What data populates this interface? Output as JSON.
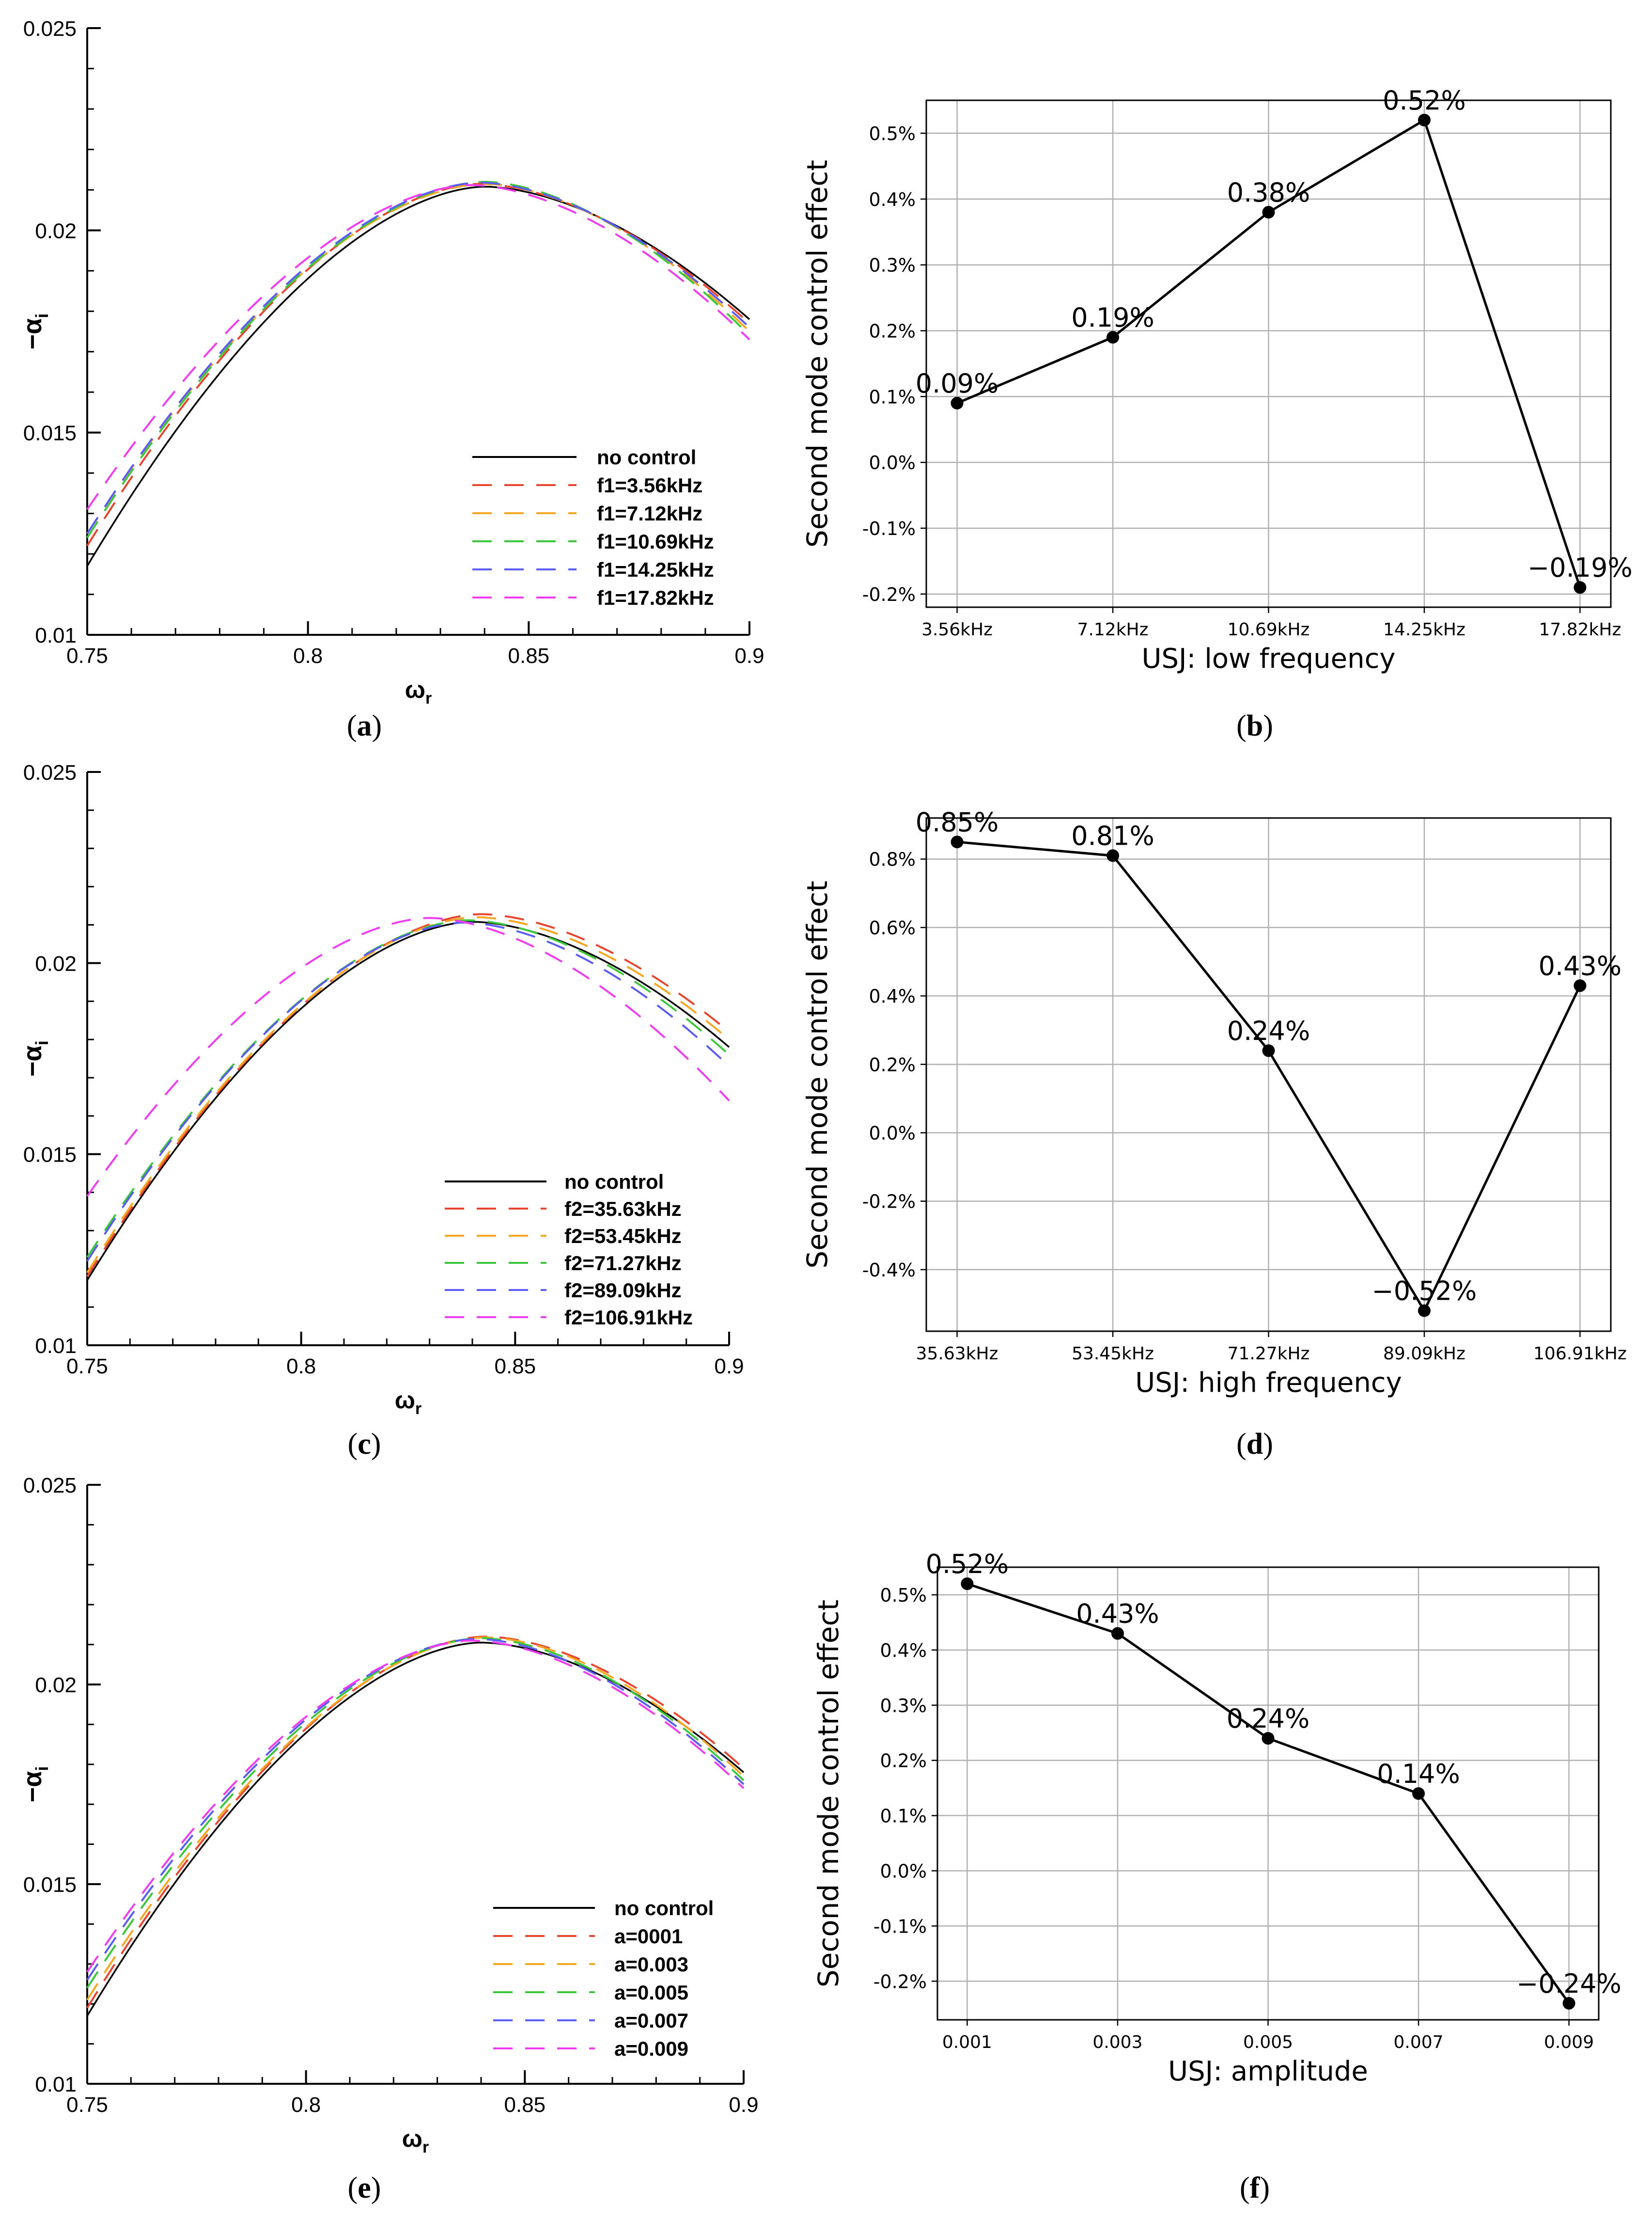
{
  "figure": {
    "panel_labels": [
      {
        "open": "(",
        "letter": "a",
        "close": ")"
      },
      {
        "open": "(",
        "letter": "b",
        "close": ")"
      },
      {
        "open": "(",
        "letter": "c",
        "close": ")"
      },
      {
        "open": "(",
        "letter": "d",
        "close": ")"
      },
      {
        "open": "(",
        "letter": "e",
        "close": ")"
      },
      {
        "open": "(",
        "letter": "f",
        "close": ")"
      }
    ]
  },
  "chart_data": [
    {
      "id": "a",
      "type": "line",
      "xlabel": "ω",
      "xlabel_sub": "r",
      "ylabel": "−α",
      "ylabel_sub": "i",
      "xlim": [
        0.75,
        0.9
      ],
      "ylim": [
        0.01,
        0.025
      ],
      "xticks": [
        0.75,
        0.8,
        0.85,
        0.9
      ],
      "xtick_labels": [
        "0.75",
        "0.8",
        "0.85",
        "0.9"
      ],
      "yticks": [
        0.01,
        0.015,
        0.02,
        0.025
      ],
      "ytick_labels": [
        "0.01",
        "0.015",
        "0.02",
        "0.025"
      ],
      "legend_position": "lower-right",
      "curve_model": {
        "x_peak": [
          0.84,
          0.839,
          0.84,
          0.84,
          0.839,
          0.837
        ],
        "y_peak": [
          0.02108,
          0.02115,
          0.02115,
          0.0212,
          0.02118,
          0.02112
        ],
        "y_start": [
          0.0117,
          0.0122,
          0.0125,
          0.0124,
          0.0125,
          0.0131
        ],
        "y_end": [
          0.0178,
          0.0177,
          0.0175,
          0.0174,
          0.0176,
          0.0173
        ]
      },
      "series": [
        {
          "name": "no control",
          "color": "#000000",
          "dashed": false
        },
        {
          "name": "f1=3.56kHz",
          "color": "#e8452e",
          "dashed": true
        },
        {
          "name": "f1=7.12kHz",
          "color": "#f5a623",
          "dashed": true
        },
        {
          "name": "f1=10.69kHz",
          "color": "#3cc63c",
          "dashed": true
        },
        {
          "name": "f1=14.25kHz",
          "color": "#5b5bf5",
          "dashed": true
        },
        {
          "name": "f1=17.82kHz",
          "color": "#f03cf0",
          "dashed": true
        }
      ]
    },
    {
      "id": "b",
      "type": "line",
      "xlabel": "USJ: low frequency",
      "ylabel": "Second mode control effect",
      "categories": [
        "3.56kHz",
        "7.12kHz",
        "10.69kHz",
        "14.25kHz",
        "17.82kHz"
      ],
      "values": [
        0.0009,
        0.0019,
        0.0038,
        0.0052,
        -0.0019
      ],
      "data_labels": [
        "0.09%",
        "0.19%",
        "0.38%",
        "0.52%",
        "−0.19%"
      ],
      "yticks": [
        -0.002,
        -0.001,
        0.0,
        0.001,
        0.002,
        0.003,
        0.004,
        0.005
      ],
      "ytick_labels": [
        "-0.2%",
        "-0.1%",
        "0.0%",
        "0.1%",
        "0.2%",
        "0.3%",
        "0.4%",
        "0.5%"
      ],
      "ylim": [
        -0.0022,
        0.0055
      ],
      "grid": true
    },
    {
      "id": "c",
      "type": "line",
      "xlabel": "ω",
      "xlabel_sub": "r",
      "ylabel": "−α",
      "ylabel_sub": "i",
      "xlim": [
        0.75,
        0.9
      ],
      "ylim": [
        0.01,
        0.025
      ],
      "xticks": [
        0.75,
        0.8,
        0.85,
        0.9
      ],
      "xtick_labels": [
        "0.75",
        "0.8",
        "0.85",
        "0.9"
      ],
      "yticks": [
        0.01,
        0.015,
        0.02,
        0.025
      ],
      "ytick_labels": [
        "0.01",
        "0.015",
        "0.02",
        "0.025"
      ],
      "legend_position": "lower-right",
      "curve_model": {
        "x_peak": [
          0.84,
          0.842,
          0.841,
          0.839,
          0.838,
          0.83
        ],
        "y_peak": [
          0.02108,
          0.02128,
          0.0212,
          0.02112,
          0.02106,
          0.02118
        ],
        "y_start": [
          0.0117,
          0.0118,
          0.0119,
          0.0123,
          0.0122,
          0.0139
        ],
        "y_end": [
          0.0178,
          0.0182,
          0.018,
          0.0176,
          0.0173,
          0.0164
        ]
      },
      "series": [
        {
          "name": "no control",
          "color": "#000000",
          "dashed": false
        },
        {
          "name": "f2=35.63kHz",
          "color": "#e8452e",
          "dashed": true
        },
        {
          "name": "f2=53.45kHz",
          "color": "#f5a623",
          "dashed": true
        },
        {
          "name": "f2=71.27kHz",
          "color": "#3cc63c",
          "dashed": true
        },
        {
          "name": "f2=89.09kHz",
          "color": "#5b5bf5",
          "dashed": true
        },
        {
          "name": "f2=106.91kHz",
          "color": "#f03cf0",
          "dashed": true
        }
      ]
    },
    {
      "id": "d",
      "type": "line",
      "xlabel": "USJ: high frequency",
      "ylabel": "Second mode control effect",
      "categories": [
        "35.63kHz",
        "53.45kHz",
        "71.27kHz",
        "89.09kHz",
        "106.91kHz"
      ],
      "values": [
        0.0085,
        0.0081,
        0.0024,
        -0.0052,
        0.0043
      ],
      "data_labels": [
        "0.85%",
        "0.81%",
        "0.24%",
        "−0.52%",
        "0.43%"
      ],
      "yticks": [
        -0.004,
        -0.002,
        0.0,
        0.002,
        0.004,
        0.006,
        0.008
      ],
      "ytick_labels": [
        "-0.4%",
        "-0.2%",
        "0.0%",
        "0.2%",
        "0.4%",
        "0.6%",
        "0.8%"
      ],
      "ylim": [
        -0.0058,
        0.0092
      ],
      "grid": true
    },
    {
      "id": "e",
      "type": "line",
      "xlabel": "ω",
      "xlabel_sub": "r",
      "ylabel": "−α",
      "ylabel_sub": "i",
      "xlim": [
        0.75,
        0.9
      ],
      "ylim": [
        0.01,
        0.025
      ],
      "xticks": [
        0.75,
        0.8,
        0.85,
        0.9
      ],
      "xtick_labels": [
        "0.75",
        "0.8",
        "0.85",
        "0.9"
      ],
      "yticks": [
        0.01,
        0.015,
        0.02,
        0.025
      ],
      "ytick_labels": [
        "0.01",
        "0.015",
        "0.02",
        "0.025"
      ],
      "legend_position": "lower-right",
      "curve_model": {
        "x_peak": [
          0.84,
          0.841,
          0.841,
          0.84,
          0.839,
          0.838
        ],
        "y_peak": [
          0.02105,
          0.0212,
          0.02118,
          0.02116,
          0.02114,
          0.0211
        ],
        "y_start": [
          0.0117,
          0.0119,
          0.0121,
          0.0124,
          0.0126,
          0.0128
        ],
        "y_end": [
          0.0178,
          0.0179,
          0.0177,
          0.0176,
          0.0175,
          0.0174
        ]
      },
      "series": [
        {
          "name": "no control",
          "color": "#000000",
          "dashed": false
        },
        {
          "name": "a=0001",
          "color": "#e8452e",
          "dashed": true
        },
        {
          "name": "a=0.003",
          "color": "#f5a623",
          "dashed": true
        },
        {
          "name": "a=0.005",
          "color": "#3cc63c",
          "dashed": true
        },
        {
          "name": "a=0.007",
          "color": "#5b5bf5",
          "dashed": true
        },
        {
          "name": "a=0.009",
          "color": "#f03cf0",
          "dashed": true
        }
      ]
    },
    {
      "id": "f",
      "type": "line",
      "xlabel": "USJ: amplitude",
      "ylabel": "Second mode control effect",
      "categories": [
        "0.001",
        "0.003",
        "0.005",
        "0.007",
        "0.009"
      ],
      "values": [
        0.0052,
        0.0043,
        0.0024,
        0.0014,
        -0.0024
      ],
      "data_labels": [
        "0.52%",
        "0.43%",
        "0.24%",
        "0.14%",
        "−0.24%"
      ],
      "yticks": [
        -0.002,
        -0.001,
        0.0,
        0.001,
        0.002,
        0.003,
        0.004,
        0.005
      ],
      "ytick_labels": [
        "-0.2%",
        "-0.1%",
        "0.0%",
        "0.1%",
        "0.2%",
        "0.3%",
        "0.4%",
        "0.5%"
      ],
      "ylim": [
        -0.0027,
        0.0055
      ],
      "grid": true
    }
  ]
}
